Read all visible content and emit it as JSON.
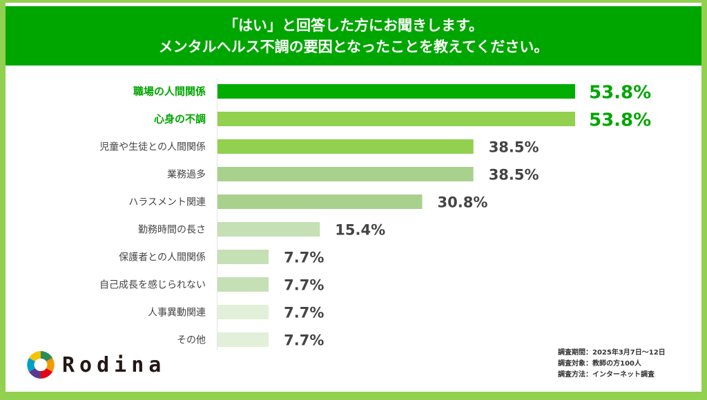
{
  "header": {
    "line1": "「はい」と回答した方にお聞きします。",
    "line2": "メンタルヘルス不調の要因となったことを教えてください。"
  },
  "chart_data": {
    "type": "bar",
    "orientation": "horizontal",
    "title": "「はい」と回答した方にお聞きします。メンタルヘルス不調の要因となったことを教えてください。",
    "categories": [
      "職場の人間関係",
      "心身の不調",
      "児童や生徒との人間関係",
      "業務過多",
      "ハラスメント関連",
      "勤務時間の長さ",
      "保護者との人間関係",
      "自己成長を感じられない",
      "人事異動関連",
      "その他"
    ],
    "values": [
      53.8,
      53.8,
      38.5,
      38.5,
      30.8,
      15.4,
      7.7,
      7.7,
      7.7,
      7.7
    ],
    "value_labels": [
      "53.8%",
      "53.8%",
      "38.5%",
      "38.5%",
      "30.8%",
      "15.4%",
      "7.7%",
      "7.7%",
      "7.7%",
      "7.7%"
    ],
    "bar_colors": [
      "#00ad00",
      "#92d050",
      "#92d050",
      "#a9d18e",
      "#a9d18e",
      "#c5e0b4",
      "#c5e0b4",
      "#c5e0b4",
      "#e2f0d9",
      "#e2f0d9"
    ],
    "highlight_color": "#00a600",
    "text_color": "#444444",
    "highlighted": [
      0,
      1
    ],
    "xlabel": "",
    "ylabel": "",
    "xlim": [
      0,
      53.8
    ],
    "grid": false
  },
  "footer": {
    "brand": "Rodina",
    "notes": [
      "調査期間：2025年3月7日～12日",
      "調査対象：教師の方100人",
      "調査方法：インターネット調査"
    ]
  }
}
